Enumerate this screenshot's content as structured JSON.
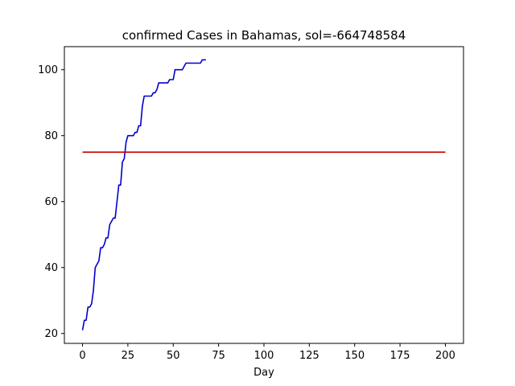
{
  "chart_data": {
    "type": "line",
    "title": "confirmed Cases in Bahamas, sol=-664748584",
    "xlabel": "Day",
    "ylabel": "",
    "xlim": [
      -10,
      210
    ],
    "ylim": [
      17,
      107
    ],
    "xticks": [
      0,
      25,
      50,
      75,
      100,
      125,
      150,
      175,
      200
    ],
    "yticks": [
      20,
      40,
      60,
      80,
      100
    ],
    "grid": false,
    "series": [
      {
        "color": "#0000cc",
        "x": [
          0,
          1,
          2,
          3,
          4,
          5,
          6,
          7,
          8,
          9,
          10,
          11,
          12,
          13,
          14,
          15,
          16,
          17,
          18,
          19,
          20,
          21,
          22,
          23,
          24,
          25,
          26,
          27,
          28,
          29,
          30,
          31,
          32,
          33,
          34,
          35,
          36,
          37,
          38,
          39,
          40,
          41,
          42,
          43,
          44,
          45,
          46,
          47,
          48,
          49,
          50,
          51,
          52,
          53,
          54,
          55,
          56,
          57,
          58,
          59,
          60,
          61,
          62,
          63,
          64,
          65,
          66,
          67,
          68
        ],
        "values": [
          21,
          24,
          24,
          28,
          28,
          29,
          33,
          40,
          41,
          42,
          46,
          46,
          47,
          49,
          49,
          53,
          54,
          55,
          55,
          60,
          65,
          65,
          72,
          73,
          78,
          80,
          80,
          80,
          80,
          81,
          81,
          83,
          83,
          89,
          92,
          92,
          92,
          92,
          92,
          93,
          93,
          94,
          96,
          96,
          96,
          96,
          96,
          96,
          97,
          97,
          97,
          100,
          100,
          100,
          100,
          100,
          101,
          102,
          102,
          102,
          102,
          102,
          102,
          102,
          102,
          102,
          103,
          103,
          103
        ]
      },
      {
        "color": "#cc0000",
        "x": [
          0,
          200
        ],
        "values": [
          75,
          75
        ]
      }
    ]
  }
}
